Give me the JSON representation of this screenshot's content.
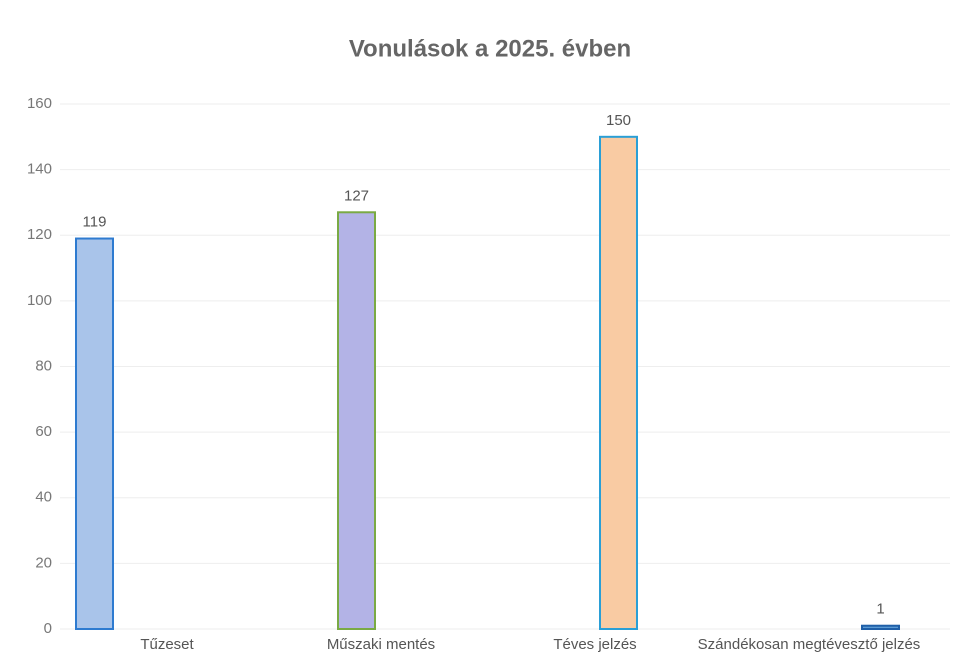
{
  "chart_data": {
    "type": "bar",
    "title": "Vonulások a 2025. évben",
    "categories": [
      "Tűzeset",
      "Műszaki mentés",
      "Téves jelzés",
      "Szándékosan megtévesztő jelzés"
    ],
    "values": [
      119,
      127,
      150,
      1
    ],
    "colors": [
      "#a9c4ea",
      "#b3b3e6",
      "#f9cba3",
      "#5b9bd5"
    ],
    "edge_colors": [
      "#2e7bd0",
      "#7aaa44",
      "#2a9fd6",
      "#1f5fa8"
    ],
    "ylim": [
      0,
      160
    ],
    "yticks": [
      0,
      20,
      40,
      60,
      80,
      100,
      120,
      140,
      160
    ],
    "grid": true
  }
}
